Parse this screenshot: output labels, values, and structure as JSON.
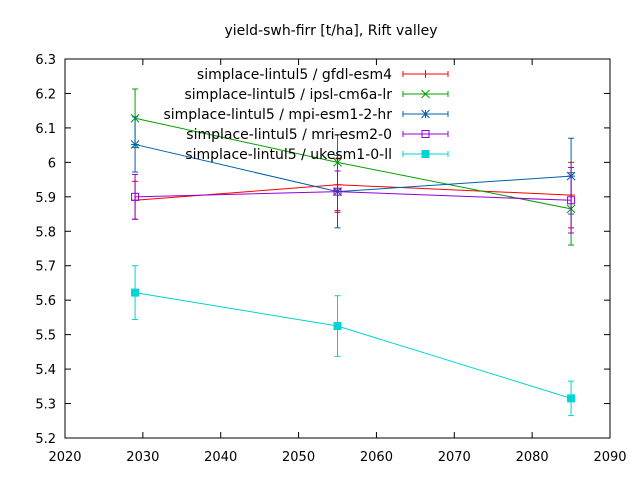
{
  "chart_data": {
    "type": "line",
    "title": "yield-swh-firr [t/ha], Rift valley",
    "xlabel": "",
    "ylabel": "",
    "xlim": [
      2020,
      2090
    ],
    "ylim": [
      5.2,
      6.3
    ],
    "xticks": [
      2020,
      2030,
      2040,
      2050,
      2060,
      2070,
      2080,
      2090
    ],
    "yticks": [
      5.2,
      5.3,
      5.4,
      5.5,
      5.6,
      5.7,
      5.8,
      5.9,
      6,
      6.1,
      6.2,
      6.3
    ],
    "grid": false,
    "legend_position": "top-right",
    "x": [
      2029,
      2055,
      2085
    ],
    "series": [
      {
        "name": "simplace-lintul5 / gfdl-esm4",
        "color": "#ff0000",
        "marker": "plus",
        "values": [
          5.89,
          5.935,
          5.905
        ],
        "errors": [
          0.055,
          0.075,
          0.095
        ]
      },
      {
        "name": "simplace-lintul5 / ipsl-cm6a-lr",
        "color": "#00a000",
        "marker": "cross",
        "values": [
          6.128,
          6.0,
          5.865
        ],
        "errors": [
          0.085,
          0.08,
          0.105
        ]
      },
      {
        "name": "simplace-lintul5 / mpi-esm1-2-hr",
        "color": "#0060ad",
        "marker": "star",
        "values": [
          6.052,
          5.915,
          5.96
        ],
        "errors": [
          0.08,
          0.105,
          0.11
        ]
      },
      {
        "name": "simplace-lintul5 / mri-esm2-0",
        "color": "#9400d3",
        "marker": "square-open",
        "values": [
          5.9,
          5.915,
          5.89
        ],
        "errors": [
          0.065,
          0.06,
          0.095
        ]
      },
      {
        "name": "simplace-lintul5 / ukesm1-0-ll",
        "color": "#00d4d4",
        "marker": "square-filled",
        "values": [
          5.622,
          5.525,
          5.315
        ],
        "errors": [
          0.078,
          0.088,
          0.05
        ]
      }
    ]
  }
}
